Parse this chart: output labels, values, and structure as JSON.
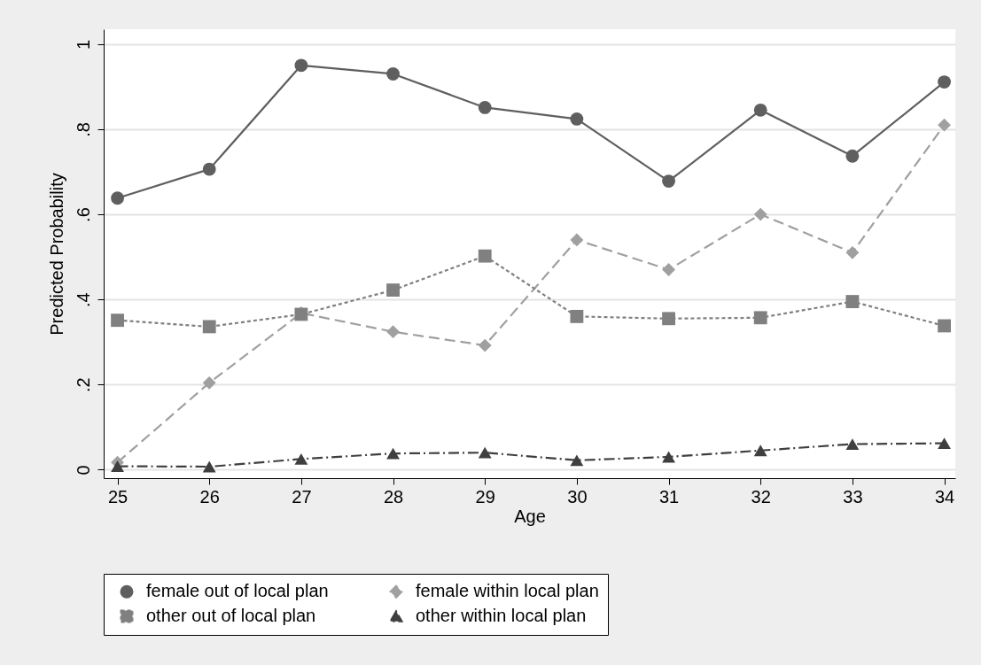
{
  "chart_data": {
    "type": "line",
    "xlabel": "Age",
    "ylabel": "Predicted Probability",
    "x": [
      25,
      26,
      27,
      28,
      29,
      30,
      31,
      32,
      33,
      34
    ],
    "xlim": [
      24.85,
      34.12
    ],
    "xticks": [
      25,
      26,
      27,
      28,
      29,
      30,
      31,
      32,
      33,
      34
    ],
    "ylim": [
      -0.02,
      1.035
    ],
    "yticks": [
      0,
      {
        "value": 0.2,
        "label": ".2"
      },
      {
        "value": 0.4,
        "label": ".4"
      },
      {
        "value": 0.6,
        "label": ".6"
      },
      {
        "value": 0.8,
        "label": ".8"
      },
      {
        "value": 1,
        "label": "1"
      }
    ],
    "grid": "y",
    "legend": "bottom",
    "series": [
      {
        "name": "female out of local plan",
        "color": "#5f5f5f",
        "marker": "circle",
        "line_style": "solid",
        "values": [
          0.638,
          0.706,
          0.95,
          0.93,
          0.851,
          0.824,
          0.678,
          0.845,
          0.737,
          0.911
        ]
      },
      {
        "name": "female within local plan",
        "color": "#a0a0a0",
        "marker": "diamond",
        "line_style": "dashed",
        "values": [
          0.017,
          0.204,
          0.368,
          0.324,
          0.292,
          0.54,
          0.47,
          0.6,
          0.51,
          0.81
        ]
      },
      {
        "name": "other out of local plan",
        "color": "#808080",
        "marker": "square",
        "line_style": "dotted",
        "values": [
          0.351,
          0.336,
          0.365,
          0.422,
          0.502,
          0.36,
          0.355,
          0.357,
          0.395,
          0.338
        ]
      },
      {
        "name": "other within local plan",
        "color": "#3f3f3f",
        "marker": "triangle",
        "line_style": "dashdot",
        "values": [
          0.008,
          0.007,
          0.025,
          0.038,
          0.04,
          0.022,
          0.03,
          0.045,
          0.06,
          0.062
        ]
      }
    ]
  }
}
